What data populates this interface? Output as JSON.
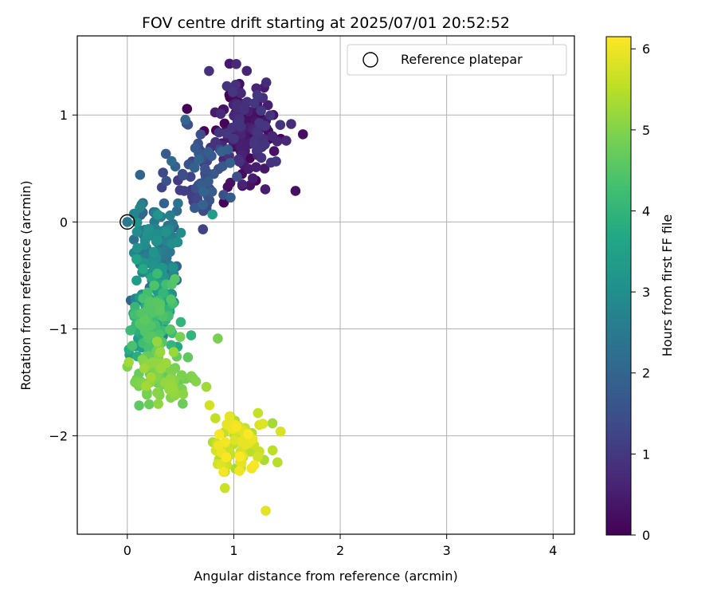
{
  "chart_data": {
    "type": "scatter",
    "title": "FOV centre drift starting at 2025/07/01 20:52:52",
    "xlabel": "Angular distance from reference (arcmin)",
    "ylabel": "Rotation from reference (arcmin)",
    "xlim": [
      -0.47,
      4.2
    ],
    "ylim": [
      -2.92,
      1.74
    ],
    "xticks": [
      0,
      1,
      2,
      3,
      4
    ],
    "yticks": [
      -2,
      -1,
      0,
      1
    ],
    "grid": true,
    "legend": {
      "placement": "top-right",
      "entries": [
        "Reference platepar"
      ]
    },
    "reference_point": {
      "x": 0,
      "y": 0,
      "label": "Reference platepar"
    },
    "colorbar": {
      "label": "Hours from first FF file",
      "range": [
        0,
        6.15
      ],
      "ticks": [
        0,
        1,
        2,
        3,
        4,
        5,
        6
      ],
      "colormap": "viridis"
    },
    "series_segments": [
      {
        "hours": [
          0.0,
          1.0
        ],
        "count": 170,
        "x_center": 1.12,
        "x_spread": 0.28,
        "y_center": 0.85,
        "y_spread": 0.38
      },
      {
        "hours": [
          1.0,
          2.0
        ],
        "count": 70,
        "x_center": 0.72,
        "x_spread": 0.25,
        "y_center": 0.45,
        "y_spread": 0.35
      },
      {
        "hours": [
          2.0,
          3.2
        ],
        "count": 140,
        "x_center": 0.28,
        "x_spread": 0.17,
        "y_center": -0.35,
        "y_spread": 0.45
      },
      {
        "hours": [
          3.2,
          4.6
        ],
        "count": 160,
        "x_center": 0.22,
        "x_spread": 0.15,
        "y_center": -0.95,
        "y_spread": 0.35
      },
      {
        "hours": [
          4.6,
          5.3
        ],
        "count": 90,
        "x_center": 0.35,
        "x_spread": 0.25,
        "y_center": -1.45,
        "y_spread": 0.22
      },
      {
        "hours": [
          5.3,
          6.15
        ],
        "count": 80,
        "x_center": 1.05,
        "x_spread": 0.22,
        "y_center": -2.1,
        "y_spread": 0.3
      }
    ],
    "sample_points": [
      {
        "x": 0.96,
        "y": 1.48,
        "h": 0.4
      },
      {
        "x": 1.65,
        "y": 0.82,
        "h": 0.2
      },
      {
        "x": 1.58,
        "y": 0.29,
        "h": 0.3
      },
      {
        "x": 0.8,
        "y": 0.07,
        "h": 3.4
      },
      {
        "x": 0.6,
        "y": -1.06,
        "h": 4.0
      },
      {
        "x": 0.85,
        "y": -1.09,
        "h": 4.9
      },
      {
        "x": 1.3,
        "y": -2.7,
        "h": 5.9
      },
      {
        "x": 1.44,
        "y": -1.96,
        "h": 5.8
      },
      {
        "x": 0.12,
        "y": 0.44,
        "h": 2.0
      },
      {
        "x": 0.57,
        "y": 0.91,
        "h": 1.6
      }
    ]
  }
}
